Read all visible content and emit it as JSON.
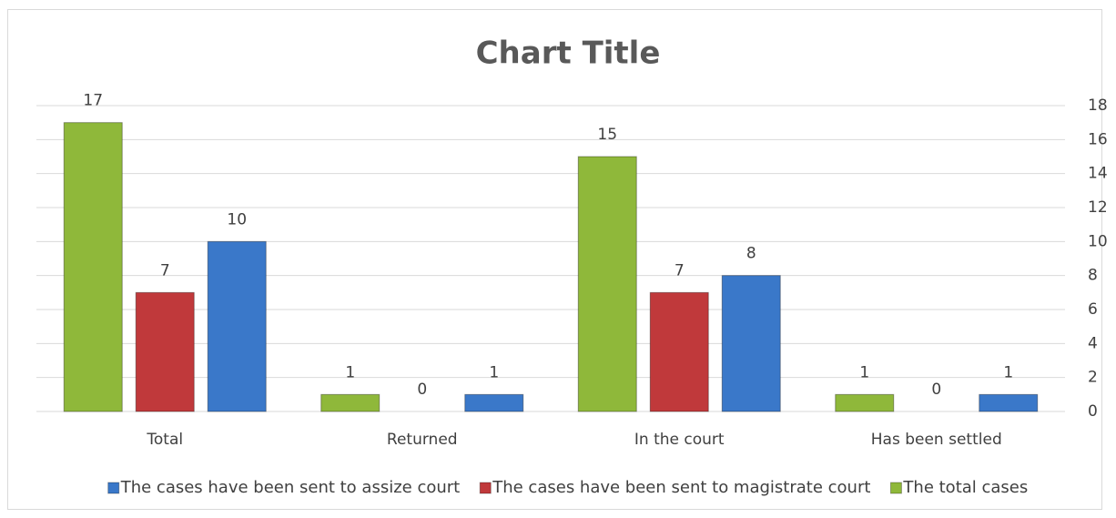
{
  "chart_data": {
    "type": "bar",
    "title": "Chart Title",
    "categories": [
      "Total",
      "Returned",
      "In the court",
      "Has been settled"
    ],
    "series": [
      {
        "name": "The cases have been sent to assize court",
        "color": "#3a78c9",
        "values": [
          10,
          1,
          8,
          1
        ]
      },
      {
        "name": "The cases have been sent to magistrate court",
        "color": "#c0393b",
        "values": [
          7,
          0,
          7,
          0
        ]
      },
      {
        "name": "The total cases",
        "color": "#8fb83a",
        "values": [
          17,
          1,
          15,
          1
        ]
      }
    ],
    "ylim": [
      0,
      18
    ],
    "yticks": [
      0,
      2,
      4,
      6,
      8,
      10,
      12,
      14,
      16,
      18
    ],
    "grid": true,
    "legend": "bottom"
  }
}
